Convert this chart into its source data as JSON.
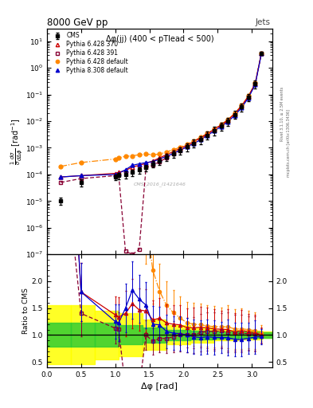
{
  "title": "8000 GeV pp",
  "subtitle": "Δφ(jj) (400 < pTlead < 500)",
  "xlabel": "Δφ [rad]",
  "ylabel_main": "$\\frac{1}{\\sigma}\\frac{d\\sigma}{d\\Delta\\phi}$ [rad$^{-1}$]",
  "ylabel_ratio": "Ratio to CMS",
  "tag_right": "Jets",
  "side_text1": "Rivet 3.1.10, ≥ 2.5M events",
  "side_text2": "mcplots.cern.ch [arXiv:1306.3436]",
  "watermark": "CMS_2016_I1421646",
  "dphi": [
    0.2,
    0.5,
    1.0,
    1.05,
    1.15,
    1.25,
    1.35,
    1.45,
    1.55,
    1.65,
    1.75,
    1.85,
    1.95,
    2.05,
    2.15,
    2.25,
    2.35,
    2.45,
    2.55,
    2.65,
    2.75,
    2.85,
    2.95,
    3.05,
    3.14
  ],
  "cms_y": [
    1e-05,
    5e-05,
    8e-05,
    9e-05,
    0.0001,
    0.00012,
    0.00015,
    0.00018,
    0.00025,
    0.00032,
    0.00045,
    0.0006,
    0.0008,
    0.0011,
    0.0015,
    0.0021,
    0.003,
    0.0045,
    0.0065,
    0.01,
    0.018,
    0.035,
    0.08,
    0.25,
    3.5
  ],
  "cms_ye": [
    3e-06,
    1.5e-05,
    2e-05,
    2.5e-05,
    3e-05,
    3.5e-05,
    4e-05,
    5e-05,
    7e-05,
    9e-05,
    0.00013,
    0.00018,
    0.00025,
    0.00035,
    0.0005,
    0.0007,
    0.001,
    0.0015,
    0.002,
    0.0035,
    0.006,
    0.012,
    0.025,
    0.08,
    0.5
  ],
  "py6_370_y": [
    8e-05,
    9e-05,
    0.00011,
    0.00012,
    0.00014,
    0.00019,
    0.00022,
    0.00026,
    0.00032,
    0.00042,
    0.00055,
    0.00072,
    0.00095,
    0.00125,
    0.0017,
    0.0024,
    0.0034,
    0.005,
    0.0072,
    0.011,
    0.019,
    0.038,
    0.085,
    0.26,
    3.5
  ],
  "py6_391_y": [
    5e-05,
    7e-05,
    9e-05,
    0.0001,
    1.3e-07,
    1e-07,
    1.5e-07,
    0.00018,
    0.00022,
    0.0003,
    0.00042,
    0.00058,
    0.0008,
    0.0011,
    0.0015,
    0.0022,
    0.0032,
    0.0048,
    0.007,
    0.0105,
    0.0185,
    0.036,
    0.082,
    0.255,
    3.45
  ],
  "py6_def_y": [
    0.0002,
    0.00028,
    0.00038,
    0.00042,
    0.00048,
    0.0005,
    0.00055,
    0.00058,
    0.00055,
    0.00058,
    0.0007,
    0.00085,
    0.00105,
    0.00135,
    0.0018,
    0.0025,
    0.0035,
    0.0052,
    0.0075,
    0.0115,
    0.02,
    0.039,
    0.088,
    0.27,
    3.6
  ],
  "py8_def_y": [
    8e-05,
    9e-05,
    0.0001,
    0.00011,
    0.00015,
    0.00022,
    0.00025,
    0.00028,
    0.0003,
    0.00038,
    0.00048,
    0.00062,
    0.00082,
    0.0011,
    0.00145,
    0.002,
    0.0029,
    0.0043,
    0.0062,
    0.0095,
    0.0165,
    0.032,
    0.075,
    0.24,
    3.4
  ],
  "colors": {
    "cms": "#000000",
    "py6_370": "#cc0000",
    "py6_391": "#880033",
    "py6_def": "#ff8800",
    "py8_def": "#0000cc"
  },
  "xlim": [
    0,
    3.3
  ],
  "ylim_main": [
    1e-07,
    30
  ],
  "ylim_ratio": [
    0.4,
    2.5
  ],
  "ratio_yticks": [
    0.5,
    1.0,
    1.5,
    2.0
  ]
}
